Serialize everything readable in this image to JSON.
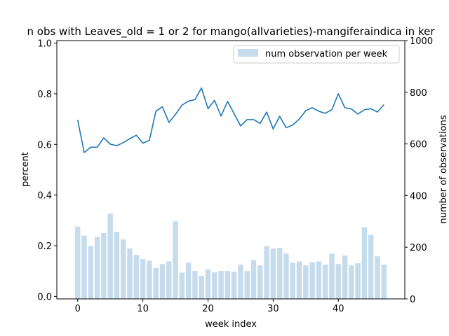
{
  "chart_data": {
    "type": "bar+line",
    "title": "n obs with Leaves_old = 1 or 2 for mango(allvarieties)-mangiferaindica in ker",
    "xlabel": "week index",
    "ylabel_left": "percent",
    "ylabel_right": "number of observations",
    "xlim": [
      -3.2,
      50.2
    ],
    "ylim_left": [
      -0.01,
      1.01
    ],
    "ylim_right": [
      0,
      1000
    ],
    "x_ticks": [
      0,
      10,
      20,
      30,
      40
    ],
    "y_left_ticks": [
      "0.0",
      "0.2",
      "0.4",
      "0.6",
      "0.8",
      "1.0"
    ],
    "y_right_ticks": [
      "0",
      "200",
      "400",
      "600",
      "800",
      "1000"
    ],
    "legend": {
      "placement": "top-right",
      "entries": [
        "num observation per week"
      ]
    },
    "colors": {
      "line": "#1f77b4",
      "bar": "#c6dbec"
    },
    "x": [
      0,
      1,
      2,
      3,
      4,
      5,
      6,
      7,
      8,
      9,
      10,
      11,
      12,
      13,
      14,
      15,
      16,
      17,
      18,
      19,
      20,
      21,
      22,
      23,
      24,
      25,
      26,
      27,
      28,
      29,
      30,
      31,
      32,
      33,
      34,
      35,
      36,
      37,
      38,
      39,
      40,
      41,
      42,
      43,
      44,
      45,
      46,
      47
    ],
    "bar_values": [
      280,
      245,
      205,
      240,
      255,
      330,
      260,
      230,
      195,
      170,
      155,
      148,
      120,
      135,
      145,
      300,
      102,
      140,
      108,
      90,
      115,
      103,
      108,
      108,
      105,
      133,
      108,
      150,
      130,
      205,
      195,
      198,
      175,
      140,
      145,
      130,
      142,
      145,
      133,
      175,
      135,
      168,
      130,
      138,
      278,
      248,
      165,
      133
    ],
    "line_values": [
      0.697,
      0.568,
      0.589,
      0.589,
      0.626,
      0.601,
      0.595,
      0.607,
      0.623,
      0.636,
      0.605,
      0.616,
      0.731,
      0.749,
      0.687,
      0.718,
      0.755,
      0.771,
      0.777,
      0.823,
      0.741,
      0.774,
      0.712,
      0.77,
      0.722,
      0.673,
      0.698,
      0.698,
      0.683,
      0.728,
      0.661,
      0.711,
      0.666,
      0.677,
      0.7,
      0.733,
      0.745,
      0.731,
      0.723,
      0.737,
      0.8,
      0.745,
      0.74,
      0.72,
      0.737,
      0.741,
      0.728,
      0.757
    ]
  }
}
